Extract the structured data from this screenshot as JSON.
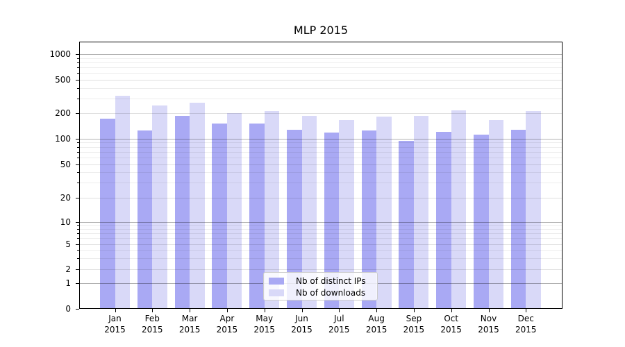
{
  "title": "MLP 2015",
  "chart_data": {
    "type": "bar",
    "title": "MLP 2015",
    "categories": [
      "Jan 2015",
      "Feb 2015",
      "Mar 2015",
      "Apr 2015",
      "May 2015",
      "Jun 2015",
      "Jul 2015",
      "Aug 2015",
      "Sep 2015",
      "Oct 2015",
      "Nov 2015",
      "Dec 2015"
    ],
    "series": [
      {
        "name": "Nb of distinct IPs",
        "color": "#a9a9f4",
        "values": [
          173,
          126,
          186,
          151,
          152,
          128,
          119,
          126,
          95,
          120,
          112,
          128
        ]
      },
      {
        "name": "Nb of downloads",
        "color": "#d9d9f8",
        "values": [
          320,
          248,
          265,
          203,
          213,
          188,
          168,
          184,
          188,
          219,
          167,
          214
        ]
      }
    ],
    "xlabel": "",
    "ylabel": "",
    "yscale": "symlog",
    "ylim": [
      0,
      1500
    ],
    "y_ticks": [
      0,
      1,
      2,
      5,
      10,
      20,
      50,
      100,
      200,
      500,
      1000
    ],
    "y_minor_ticks": [
      3,
      4,
      6,
      7,
      8,
      9,
      30,
      40,
      60,
      70,
      80,
      90,
      300,
      400,
      600,
      700,
      800,
      900
    ],
    "grid": true,
    "legend_position": "lower-center"
  },
  "colors": {
    "background": "#ffffff",
    "spine": "#000000",
    "grid_major_rgba": "0,0,0,0.30",
    "grid_labeled_rgba": "0,0,0,0.12",
    "grid_minor_rgba": "0,0,0,0.07"
  }
}
